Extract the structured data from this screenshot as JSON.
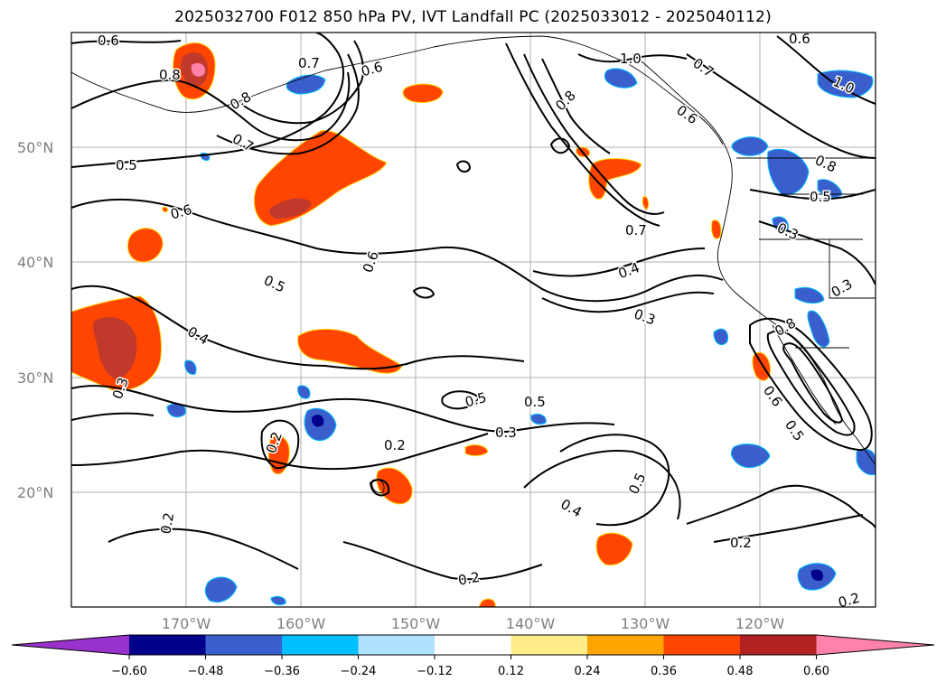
{
  "title": "2025032700 F012 850 hPa PV, IVT Landfall PC (2025033012 - 2025040112)",
  "map": {
    "lat_labels": [
      "50°N",
      "40°N",
      "30°N",
      "20°N"
    ],
    "lon_labels": [
      "170°W",
      "160°W",
      "150°W",
      "140°W",
      "130°W",
      "120°W"
    ],
    "colors": {
      "land_outline": "#000000",
      "grid": "#b0b0b0",
      "contour": "#000000"
    },
    "contour_labels": [
      "0.6",
      "0.8",
      "0.8",
      "0.7",
      "0.5",
      "0.6",
      "0.6",
      "0.5",
      "0.4",
      "0.3",
      "0.2",
      "0.2",
      "0.2",
      "0.3",
      "0.5",
      "0.5",
      "0.4",
      "0.2",
      "0.2",
      "1.0",
      "0.8",
      "0.7",
      "0.4",
      "0.3",
      "0.6",
      "0.7",
      "0.6",
      "1.0",
      "0.8",
      "0.5",
      "0.3",
      "0.3",
      "0.8",
      "0.6",
      "0.5",
      "0.2",
      "0.5",
      "0.7",
      "0.6"
    ]
  },
  "colorbar": {
    "colors": [
      "#9932cc",
      "#00008b",
      "#3a5fcd",
      "#00bfff",
      "#b0e2ff",
      "#ffffff",
      "#ffec8b",
      "#ffa500",
      "#ff4500",
      "#b22222",
      "#ff82ab"
    ],
    "tick_labels": [
      "−0.60",
      "−0.48",
      "−0.36",
      "−0.24",
      "−0.12",
      "0.12",
      "0.24",
      "0.36",
      "0.48",
      "0.60"
    ]
  }
}
